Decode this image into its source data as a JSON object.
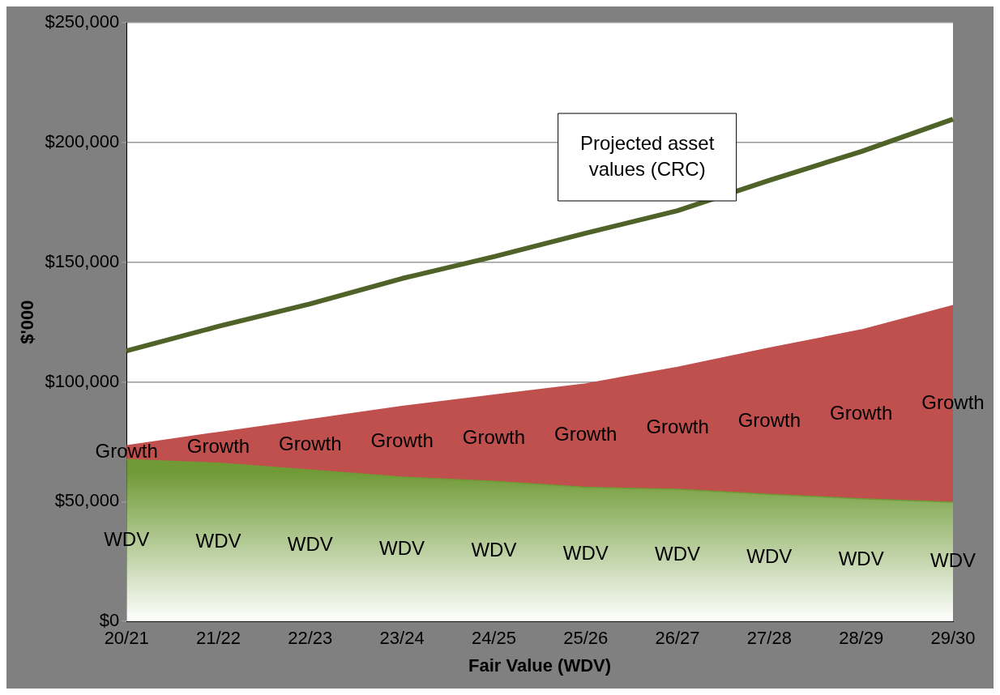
{
  "chart_data": {
    "type": "area",
    "stacked": true,
    "xlabel": "Fair Value (WDV)",
    "ylabel": "$'000",
    "categories": [
      "20/21",
      "21/22",
      "22/23",
      "23/24",
      "24/25",
      "25/26",
      "26/27",
      "27/28",
      "28/29",
      "29/30"
    ],
    "series": [
      {
        "name": "WDV",
        "color": "#6f9a36",
        "values": [
          67600,
          66100,
          63200,
          60300,
          58500,
          56000,
          55200,
          53100,
          51200,
          49800
        ]
      },
      {
        "name": "Growth",
        "color": "#c0504d",
        "values": [
          5800,
          12800,
          21100,
          29500,
          36000,
          43200,
          50900,
          61000,
          70500,
          82100
        ]
      },
      {
        "name": "Projected asset values (CRC)",
        "type": "line",
        "color": "#4f6228",
        "values": [
          113000,
          123200,
          132600,
          143200,
          152300,
          162100,
          171500,
          184200,
          196200,
          209700
        ]
      }
    ],
    "ylim": [
      0,
      250000
    ],
    "yticks": [
      {
        "value": 0,
        "label": "$0"
      },
      {
        "value": 50000,
        "label": "$50,000"
      },
      {
        "value": 100000,
        "label": "$100,000"
      },
      {
        "value": 150000,
        "label": "$150,000"
      },
      {
        "value": 200000,
        "label": "$200,000"
      },
      {
        "value": 250000,
        "label": "$250,000"
      }
    ],
    "grid": "y",
    "marker": "none"
  }
}
